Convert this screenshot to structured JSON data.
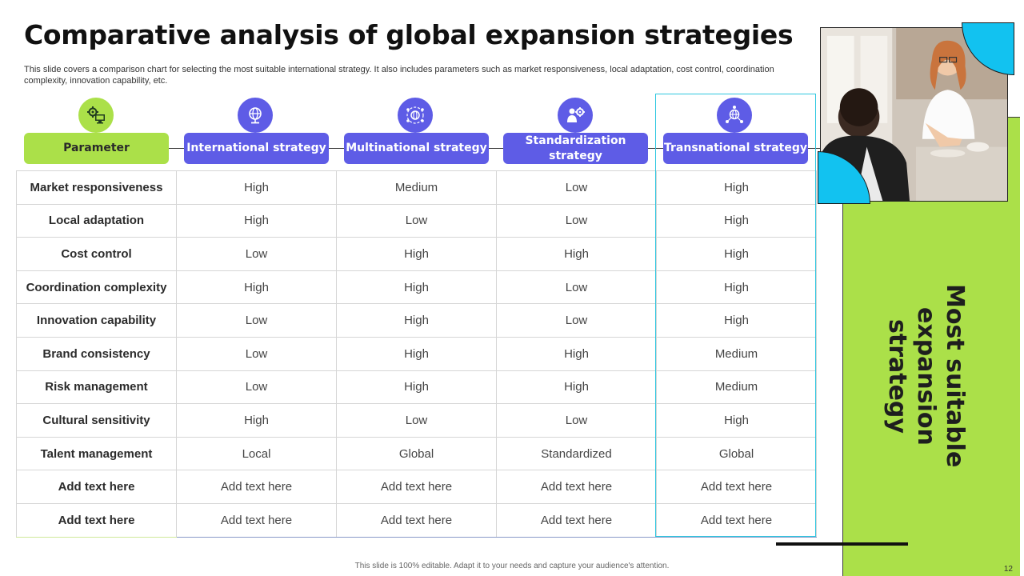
{
  "title": "Comparative analysis of global expansion strategies",
  "subtitle": "This slide covers a comparison chart for selecting the most suitable international strategy. It also includes parameters such as market responsiveness, local adaptation, cost control, coordination complexity, innovation capability, etc.",
  "table": {
    "parameter_header": "Parameter",
    "strategies": [
      {
        "label": "International strategy",
        "icon": "globe-icon"
      },
      {
        "label": "Multinational strategy",
        "icon": "network-globe-icon"
      },
      {
        "label": "Standardization strategy",
        "icon": "person-gear-icon"
      },
      {
        "label": "Transnational strategy",
        "icon": "connected-globe-icon"
      }
    ],
    "parameter_icon": "gear-monitor-icon",
    "rows": [
      {
        "parameter": "Market responsiveness",
        "values": [
          "High",
          "Medium",
          "Low",
          "High"
        ]
      },
      {
        "parameter": "Local adaptation",
        "values": [
          "High",
          "Low",
          "Low",
          "High"
        ]
      },
      {
        "parameter": "Cost control",
        "values": [
          "Low",
          "High",
          "High",
          "High"
        ]
      },
      {
        "parameter": "Coordination complexity",
        "values": [
          "High",
          "High",
          "Low",
          "High"
        ]
      },
      {
        "parameter": "Innovation capability",
        "values": [
          "Low",
          "High",
          "Low",
          "High"
        ]
      },
      {
        "parameter": "Brand consistency",
        "values": [
          "Low",
          "High",
          "High",
          "Medium"
        ]
      },
      {
        "parameter": "Risk management",
        "values": [
          "Low",
          "High",
          "High",
          "Medium"
        ]
      },
      {
        "parameter": "Cultural sensitivity",
        "values": [
          "High",
          "Low",
          "Low",
          "High"
        ]
      },
      {
        "parameter": "Talent management",
        "values": [
          "Local",
          "Global",
          "Standardized",
          "Global"
        ]
      },
      {
        "parameter": "Add  text here",
        "values": [
          "Add text here",
          "Add text here",
          "Add text here",
          "Add text here"
        ]
      },
      {
        "parameter": "Add  text here",
        "values": [
          "Add text here",
          "Add text here",
          "Add text here",
          "Add text here"
        ]
      }
    ]
  },
  "side_panel": {
    "line1": "Most suitable",
    "line2": "expansion strategy"
  },
  "footer": "This slide is 100% editable.  Adapt it to your needs and capture your audience's attention.",
  "page_number": "12",
  "colors": {
    "green": "#abe049",
    "purple": "#5e5ce6",
    "cyan": "#12c2f0",
    "highlight_border": "#2ec7e0"
  }
}
